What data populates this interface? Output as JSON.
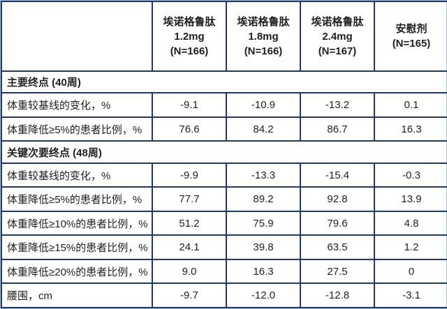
{
  "colors": {
    "border_dark": "#1F3864",
    "border_light": "#A9C0DE",
    "text": "#1F1F1F",
    "background": "#FFFFFF"
  },
  "table": {
    "corner_label": "",
    "columns": [
      {
        "lines": [
          "埃诺格鲁肽",
          "1.2mg",
          "(N=166)"
        ]
      },
      {
        "lines": [
          "埃诺格鲁肽",
          "1.8mg",
          "(N=166)"
        ]
      },
      {
        "lines": [
          "埃诺格鲁肽",
          "2.4mg",
          "(N=167)"
        ]
      },
      {
        "lines": [
          "安慰剂",
          "(N=165)"
        ]
      }
    ],
    "sections": [
      {
        "title": "主要终点 (40周)",
        "rows": [
          {
            "label": "体重较基线的变化，%",
            "values": [
              "-9.1",
              "-10.9",
              "-13.2",
              "0.1"
            ]
          },
          {
            "label": "体重降低≥5%的患者比例，%",
            "values": [
              "76.6",
              "84.2",
              "86.7",
              "16.3"
            ]
          }
        ]
      },
      {
        "title": "关键次要终点 (48周)",
        "rows": [
          {
            "label": "体重较基线的变化，%",
            "values": [
              "-9.9",
              "-13.3",
              "-15.4",
              "-0.3"
            ]
          },
          {
            "label": "体重降低≥5%的患者比例，%",
            "values": [
              "77.7",
              "89.2",
              "92.8",
              "13.9"
            ]
          },
          {
            "label": "体重降低≥10%的患者比例，%",
            "values": [
              "51.2",
              "75.9",
              "79.6",
              "4.8"
            ]
          },
          {
            "label": "体重降低≥15%的患者比例，%",
            "values": [
              "24.1",
              "39.8",
              "63.5",
              "1.2"
            ]
          },
          {
            "label": "体重降低≥20%的患者比例，%",
            "values": [
              "9.0",
              "16.3",
              "27.5",
              "0"
            ]
          },
          {
            "label": "腰围，cm",
            "values": [
              "-9.7",
              "-12.0",
              "-12.8",
              "-3.1"
            ]
          }
        ]
      }
    ]
  },
  "chart_data": {
    "type": "table",
    "title": "",
    "columns": [
      "埃诺格鲁肽 1.2mg (N=166)",
      "埃诺格鲁肽 1.8mg (N=166)",
      "埃诺格鲁肽 2.4mg (N=167)",
      "安慰剂 (N=165)"
    ],
    "sections": [
      {
        "title": "主要终点 (40周)",
        "rows": [
          {
            "label": "体重较基线的变化，%",
            "values": [
              -9.1,
              -10.9,
              -13.2,
              0.1
            ]
          },
          {
            "label": "体重降低≥5%的患者比例，%",
            "values": [
              76.6,
              84.2,
              86.7,
              16.3
            ]
          }
        ]
      },
      {
        "title": "关键次要终点 (48周)",
        "rows": [
          {
            "label": "体重较基线的变化，%",
            "values": [
              -9.9,
              -13.3,
              -15.4,
              -0.3
            ]
          },
          {
            "label": "体重降低≥5%的患者比例，%",
            "values": [
              77.7,
              89.2,
              92.8,
              13.9
            ]
          },
          {
            "label": "体重降低≥10%的患者比例，%",
            "values": [
              51.2,
              75.9,
              79.6,
              4.8
            ]
          },
          {
            "label": "体重降低≥15%的患者比例，%",
            "values": [
              24.1,
              39.8,
              63.5,
              1.2
            ]
          },
          {
            "label": "体重降低≥20%的患者比例，%",
            "values": [
              9.0,
              16.3,
              27.5,
              0
            ]
          },
          {
            "label": "腰围，cm",
            "values": [
              -9.7,
              -12.0,
              -12.8,
              -3.1
            ]
          }
        ]
      }
    ]
  }
}
